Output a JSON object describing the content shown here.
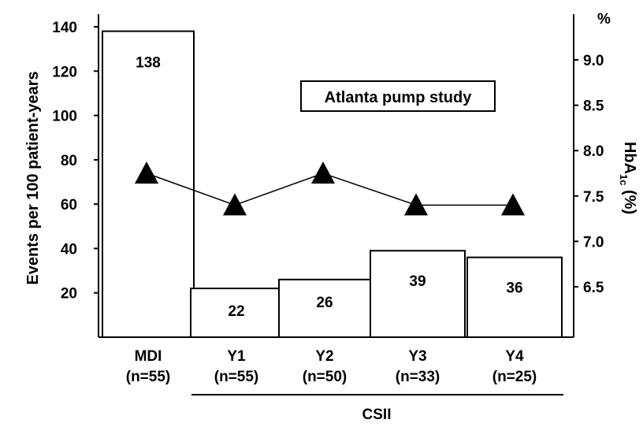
{
  "chart_data": {
    "type": "bar",
    "title": "",
    "annotation": "Atlanta pump study",
    "categories": [
      "MDI",
      "Y1",
      "Y2",
      "Y3",
      "Y4"
    ],
    "category_sublabels": [
      "(n=55)",
      "(n=55)",
      "(n=50)",
      "(n=33)",
      "(n=25)"
    ],
    "group_label": "CSII",
    "group_members": [
      "Y1",
      "Y2",
      "Y3",
      "Y4"
    ],
    "series": [
      {
        "type": "bar",
        "axis": "left",
        "values": [
          138,
          22,
          26,
          39,
          36
        ],
        "data_labels": [
          "138",
          "22",
          "26",
          "39",
          "36"
        ]
      },
      {
        "type": "line",
        "axis": "right",
        "marker": "triangle",
        "values": [
          7.75,
          7.4,
          7.75,
          7.4,
          7.4
        ]
      }
    ],
    "ylabel": "Events per 100 patient-years",
    "ylim": [
      0,
      140
    ],
    "yticks": [
      20,
      40,
      60,
      80,
      100,
      120,
      140
    ],
    "y2label": "HbA",
    "y2label_sub": "1c",
    "y2label_suffix": "(%)",
    "y2unit": "%",
    "y2lim": [
      5.8,
      9.4
    ],
    "y2ticks": [
      "6.5",
      "7.0",
      "7.5",
      "8.0",
      "8.5",
      "9.0"
    ],
    "grid": false,
    "legend": "none"
  }
}
